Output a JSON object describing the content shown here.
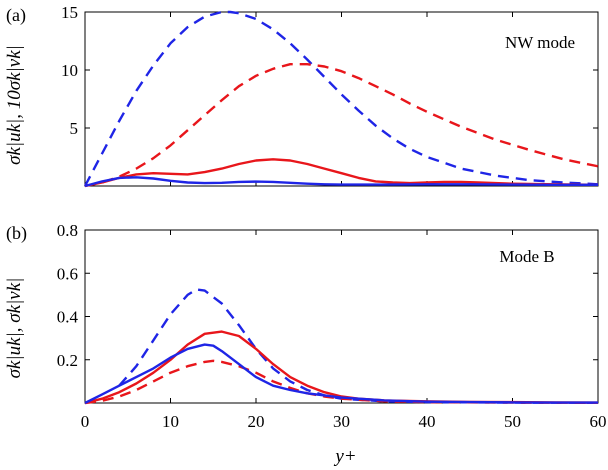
{
  "colors": {
    "blue": "#1f25e6",
    "red": "#e8161b"
  },
  "chart_data": [
    {
      "type": "line",
      "panel_label": "(a)",
      "annotation": "NW mode",
      "ylabel": "σk|uk|, 10σk|vk|",
      "xlabel": "",
      "xlim": [
        0,
        60
      ],
      "ylim": [
        0,
        15
      ],
      "xticks": [
        "0",
        "10",
        "20",
        "30",
        "40",
        "50",
        "60"
      ],
      "yticks": [
        {
          "v": 5,
          "label": "5"
        },
        {
          "v": 10,
          "label": "10"
        },
        {
          "v": 15,
          "label": "15"
        }
      ],
      "x_tick_labels_shown": false,
      "series": [
        {
          "color": "blue",
          "dash": true,
          "x": [
            0,
            2,
            4,
            6,
            8,
            10,
            12,
            14,
            16,
            17,
            18,
            20,
            22,
            24,
            26,
            28,
            30,
            32,
            34,
            36,
            38,
            40,
            44,
            48,
            52,
            56,
            60
          ],
          "y": [
            0,
            2.8,
            5.6,
            8.2,
            10.4,
            12.3,
            13.7,
            14.6,
            15.0,
            15.0,
            14.9,
            14.4,
            13.5,
            12.3,
            10.9,
            9.4,
            7.9,
            6.5,
            5.2,
            4.1,
            3.2,
            2.5,
            1.5,
            0.9,
            0.5,
            0.3,
            0.15
          ]
        },
        {
          "color": "red",
          "dash": true,
          "x": [
            0,
            2,
            4,
            6,
            8,
            10,
            12,
            14,
            16,
            18,
            20,
            22,
            24,
            26,
            28,
            30,
            32,
            34,
            36,
            38,
            40,
            44,
            48,
            52,
            56,
            60
          ],
          "y": [
            0,
            0.3,
            0.8,
            1.5,
            2.4,
            3.5,
            4.8,
            6.1,
            7.4,
            8.6,
            9.5,
            10.1,
            10.5,
            10.5,
            10.3,
            9.9,
            9.3,
            8.6,
            7.9,
            7.1,
            6.4,
            5.1,
            4.0,
            3.1,
            2.3,
            1.7
          ]
        },
        {
          "color": "red",
          "dash": false,
          "x": [
            0,
            2,
            4,
            6,
            8,
            10,
            12,
            14,
            16,
            18,
            20,
            22,
            24,
            26,
            28,
            30,
            32,
            34,
            36,
            38,
            40,
            42,
            44,
            46,
            48,
            50,
            55,
            60
          ],
          "y": [
            0,
            0.3,
            0.7,
            1.0,
            1.1,
            1.05,
            1.0,
            1.2,
            1.5,
            1.9,
            2.2,
            2.3,
            2.2,
            1.9,
            1.5,
            1.1,
            0.7,
            0.4,
            0.3,
            0.25,
            0.3,
            0.35,
            0.35,
            0.3,
            0.25,
            0.2,
            0.15,
            0.1
          ]
        },
        {
          "color": "blue",
          "dash": false,
          "x": [
            0,
            2,
            4,
            6,
            8,
            10,
            12,
            14,
            16,
            18,
            20,
            22,
            24,
            26,
            28,
            30,
            35,
            40,
            45,
            50,
            55,
            60
          ],
          "y": [
            0,
            0.4,
            0.7,
            0.75,
            0.65,
            0.45,
            0.3,
            0.25,
            0.28,
            0.35,
            0.38,
            0.35,
            0.28,
            0.2,
            0.15,
            0.12,
            0.12,
            0.15,
            0.15,
            0.12,
            0.1,
            0.1
          ]
        }
      ]
    },
    {
      "type": "line",
      "panel_label": "(b)",
      "annotation": "Mode B",
      "ylabel": "σk|uk|, σk|vk|",
      "xlabel": "y+",
      "xlim": [
        0,
        60
      ],
      "ylim": [
        0,
        0.8
      ],
      "xticks": [
        "0",
        "10",
        "20",
        "30",
        "40",
        "50",
        "60"
      ],
      "yticks": [
        {
          "v": 0.2,
          "label": "0.2"
        },
        {
          "v": 0.4,
          "label": "0.4"
        },
        {
          "v": 0.6,
          "label": "0.6"
        },
        {
          "v": 0.8,
          "label": "0.8"
        }
      ],
      "x_tick_labels_shown": true,
      "series": [
        {
          "color": "blue",
          "dash": true,
          "x": [
            4,
            6,
            8,
            10,
            12,
            13,
            14,
            16,
            18,
            20,
            22,
            24,
            26,
            28,
            30,
            35,
            40,
            50,
            60
          ],
          "y": [
            0.08,
            0.17,
            0.29,
            0.41,
            0.5,
            0.525,
            0.52,
            0.46,
            0.36,
            0.25,
            0.16,
            0.1,
            0.06,
            0.035,
            0.02,
            0.008,
            0.004,
            0.002,
            0.001
          ]
        },
        {
          "color": "red",
          "dash": true,
          "x": [
            0,
            2,
            4,
            6,
            8,
            10,
            12,
            14,
            15,
            16,
            18,
            20,
            22,
            24,
            26,
            28,
            30,
            35,
            40,
            50,
            60
          ],
          "y": [
            0,
            0.01,
            0.03,
            0.06,
            0.1,
            0.14,
            0.17,
            0.19,
            0.195,
            0.19,
            0.17,
            0.14,
            0.1,
            0.07,
            0.045,
            0.03,
            0.02,
            0.008,
            0.004,
            0.002,
            0.001
          ]
        },
        {
          "color": "red",
          "dash": false,
          "x": [
            0,
            2,
            4,
            6,
            8,
            10,
            12,
            14,
            16,
            18,
            20,
            22,
            24,
            26,
            28,
            30,
            32,
            35,
            40,
            45,
            50,
            55,
            60
          ],
          "y": [
            0,
            0.02,
            0.05,
            0.09,
            0.14,
            0.2,
            0.27,
            0.32,
            0.33,
            0.31,
            0.25,
            0.18,
            0.12,
            0.08,
            0.05,
            0.03,
            0.02,
            0.012,
            0.008,
            0.005,
            0.004,
            0.003,
            0.002
          ]
        },
        {
          "color": "blue",
          "dash": false,
          "x": [
            0,
            2,
            4,
            6,
            8,
            10,
            12,
            14,
            15,
            16,
            18,
            20,
            22,
            24,
            26,
            28,
            30,
            35,
            40,
            45,
            50,
            55,
            60
          ],
          "y": [
            0,
            0.04,
            0.08,
            0.12,
            0.16,
            0.21,
            0.25,
            0.27,
            0.265,
            0.24,
            0.18,
            0.12,
            0.08,
            0.06,
            0.045,
            0.035,
            0.025,
            0.012,
            0.006,
            0.004,
            0.003,
            0.002,
            0.002
          ]
        }
      ]
    }
  ]
}
